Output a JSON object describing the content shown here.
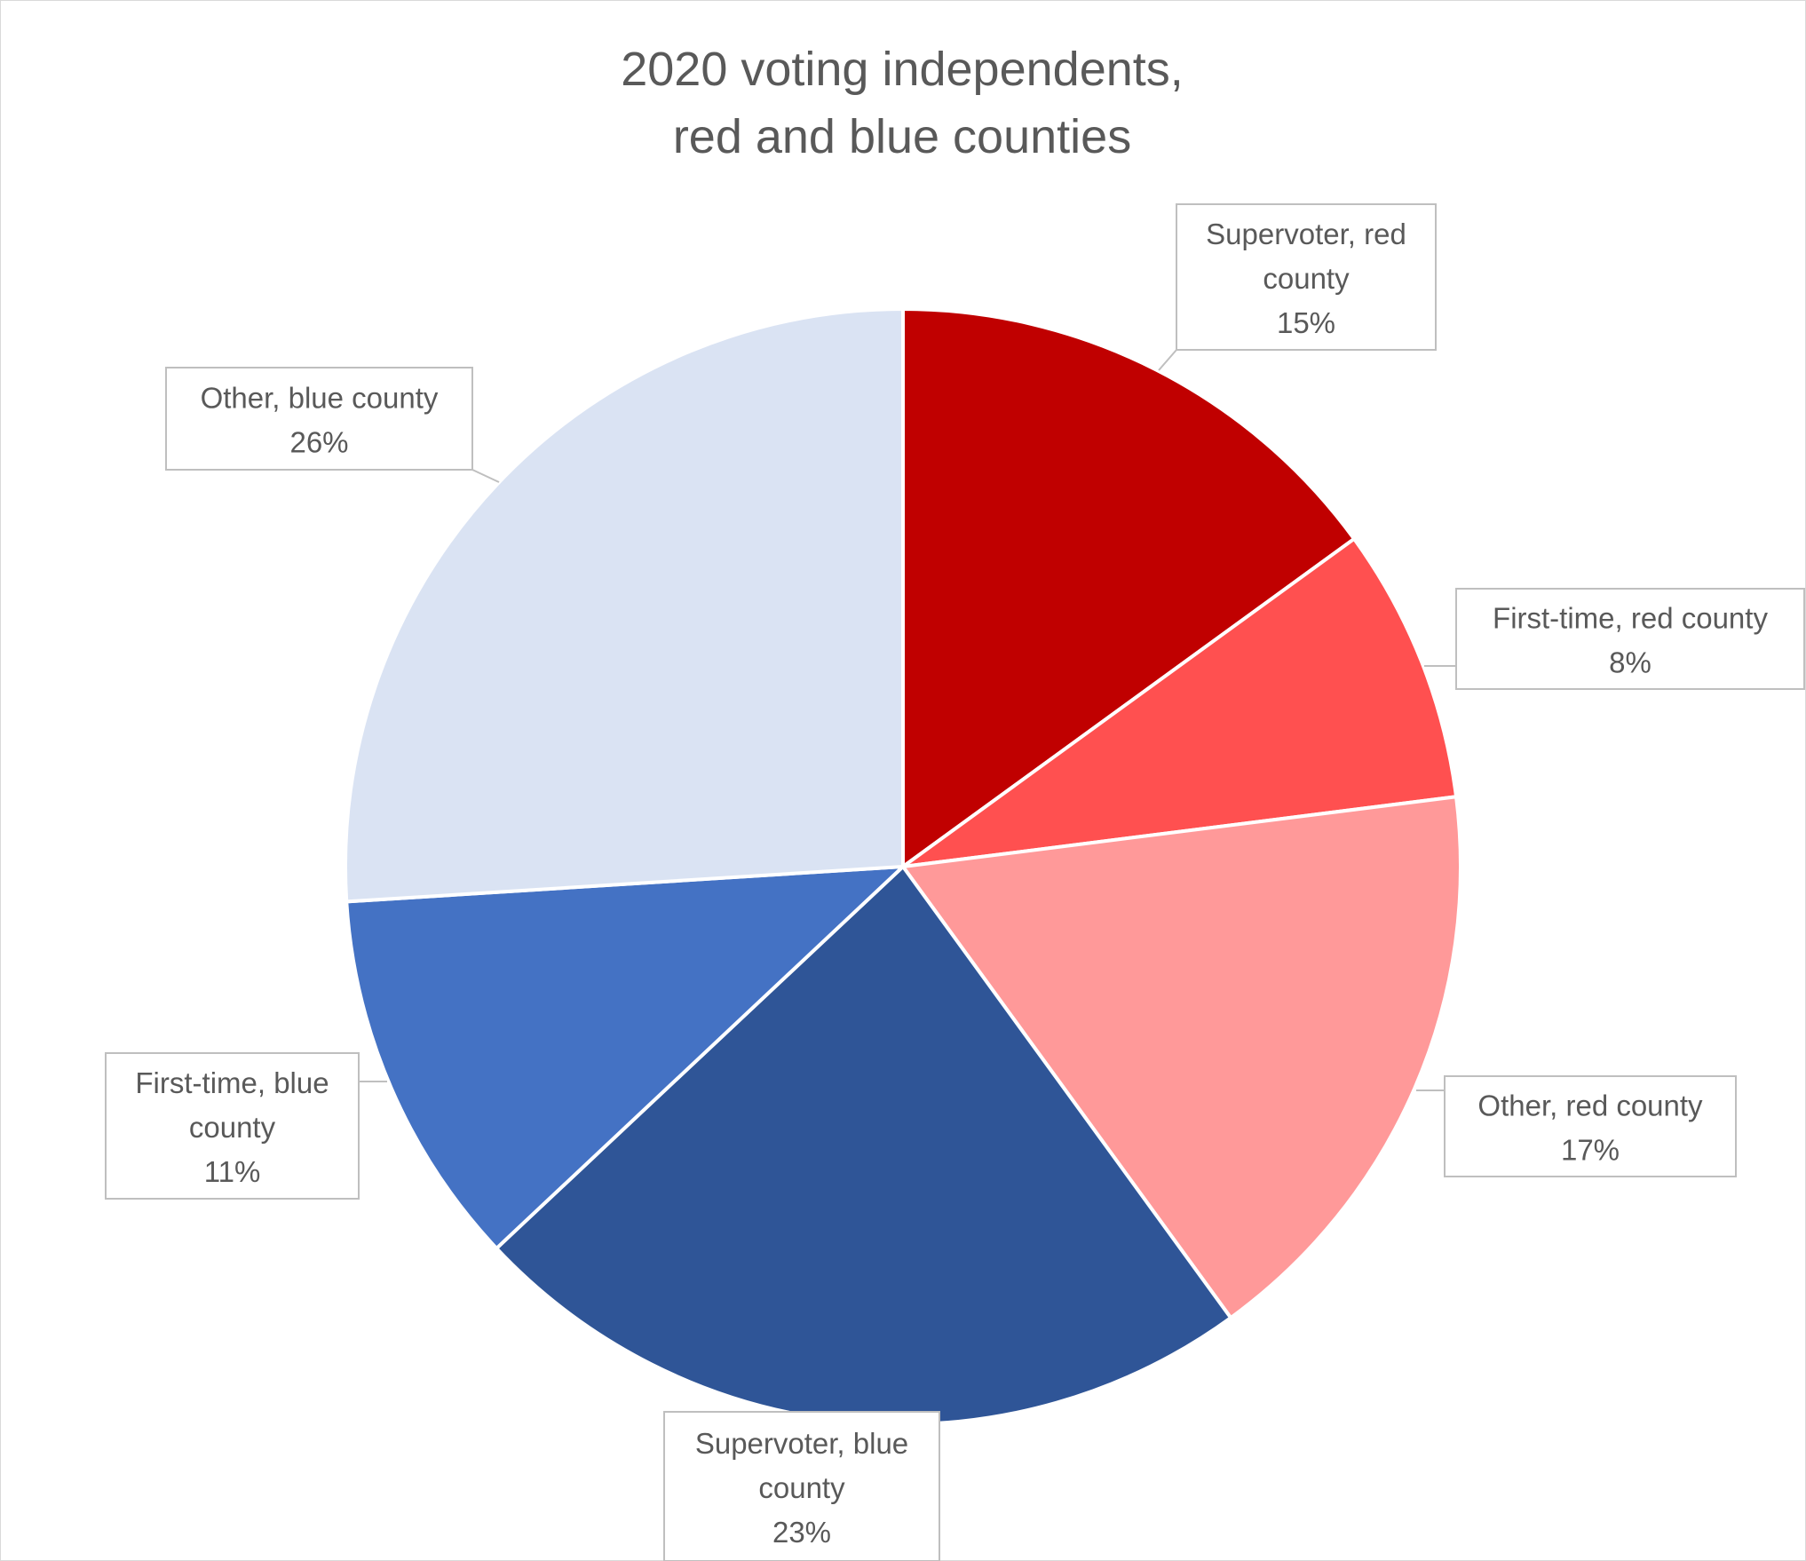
{
  "chart_data": {
    "type": "pie",
    "title_lines": [
      "2020 voting independents,",
      "red and blue counties"
    ],
    "slices": [
      {
        "name": "Supervoter, red county",
        "label_lines": [
          "Supervoter, red",
          "county"
        ],
        "value": 15,
        "value_label": "15%",
        "color": "#C00000"
      },
      {
        "name": "First-time, red county",
        "label_lines": [
          "First-time, red county"
        ],
        "value": 8,
        "value_label": "8%",
        "color": "#FF5050"
      },
      {
        "name": "Other, red county",
        "label_lines": [
          "Other, red county"
        ],
        "value": 17,
        "value_label": "17%",
        "color": "#FF9999"
      },
      {
        "name": "Supervoter, blue county",
        "label_lines": [
          "Supervoter, blue",
          "county"
        ],
        "value": 23,
        "value_label": "23%",
        "color": "#2F5597"
      },
      {
        "name": "First-time, blue county",
        "label_lines": [
          "First-time, blue",
          "county"
        ],
        "value": 11,
        "value_label": "11%",
        "color": "#4472C4"
      },
      {
        "name": "Other, blue county",
        "label_lines": [
          "Other, blue county"
        ],
        "value": 26,
        "value_label": "26%",
        "color": "#DAE3F3"
      }
    ]
  }
}
